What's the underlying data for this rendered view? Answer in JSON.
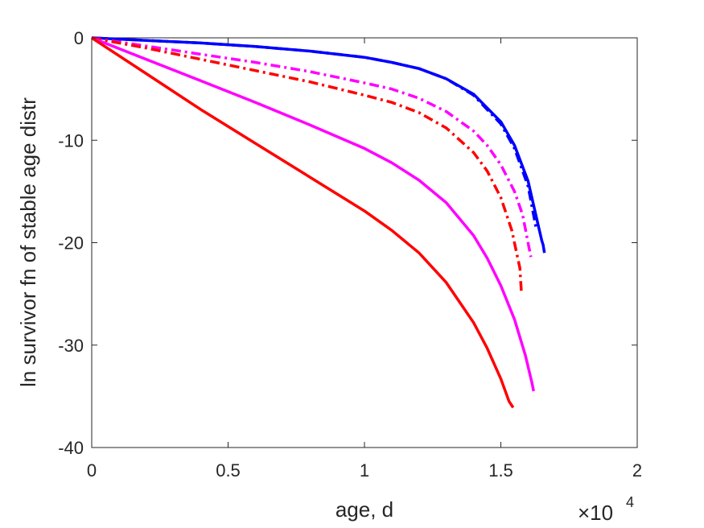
{
  "chart_data": {
    "type": "line",
    "title": "",
    "xlabel": "age, d",
    "ylabel": "ln survivor fn of stable age distr",
    "xlim": [
      0,
      20000
    ],
    "ylim": [
      -40,
      0
    ],
    "x_exponent_label": {
      "base": "×10",
      "power": "4"
    },
    "xticks": [
      {
        "value": 0,
        "label": "0"
      },
      {
        "value": 5000,
        "label": "0.5"
      },
      {
        "value": 10000,
        "label": "1"
      },
      {
        "value": 15000,
        "label": "1.5"
      },
      {
        "value": 20000,
        "label": "2"
      }
    ],
    "yticks": [
      {
        "value": 0,
        "label": "0"
      },
      {
        "value": -10,
        "label": "-10"
      },
      {
        "value": -20,
        "label": "-20"
      },
      {
        "value": -30,
        "label": "-30"
      },
      {
        "value": -40,
        "label": "-40"
      }
    ],
    "grid": false,
    "series": [
      {
        "color": "#0000ff",
        "style": "solid",
        "width": 3.5,
        "points": [
          [
            0,
            0
          ],
          [
            2000,
            -0.25
          ],
          [
            4000,
            -0.5
          ],
          [
            6000,
            -0.85
          ],
          [
            8000,
            -1.3
          ],
          [
            10000,
            -1.9
          ],
          [
            11000,
            -2.4
          ],
          [
            12000,
            -3.0
          ],
          [
            13000,
            -4.0
          ],
          [
            14000,
            -5.5
          ],
          [
            15000,
            -8.2
          ],
          [
            15500,
            -10.5
          ],
          [
            16000,
            -14.0
          ],
          [
            16300,
            -17.5
          ],
          [
            16500,
            -19.8
          ],
          [
            16550,
            -20.2
          ],
          [
            16600,
            -21.0
          ]
        ]
      },
      {
        "color": "#0000ff",
        "style": "dashdot",
        "width": 3.5,
        "points": [
          [
            0,
            0
          ],
          [
            2000,
            -0.25
          ],
          [
            4000,
            -0.5
          ],
          [
            6000,
            -0.85
          ],
          [
            8000,
            -1.3
          ],
          [
            10000,
            -1.9
          ],
          [
            11000,
            -2.4
          ],
          [
            12000,
            -3.0
          ],
          [
            13000,
            -4.0
          ],
          [
            14000,
            -5.6
          ],
          [
            15000,
            -8.4
          ],
          [
            15500,
            -10.8
          ],
          [
            16000,
            -14.5
          ],
          [
            16300,
            -18.7
          ]
        ]
      },
      {
        "color": "#ff00ff",
        "style": "dashdot",
        "width": 3.5,
        "points": [
          [
            0,
            0
          ],
          [
            2000,
            -0.8
          ],
          [
            4000,
            -1.6
          ],
          [
            6000,
            -2.4
          ],
          [
            8000,
            -3.3
          ],
          [
            10000,
            -4.4
          ],
          [
            11000,
            -5.0
          ],
          [
            12000,
            -5.9
          ],
          [
            13000,
            -7.2
          ],
          [
            14000,
            -9.1
          ],
          [
            14500,
            -10.5
          ],
          [
            15000,
            -12.4
          ],
          [
            15500,
            -15.0
          ],
          [
            15800,
            -17.3
          ],
          [
            16100,
            -21.4
          ]
        ]
      },
      {
        "color": "#ff0000",
        "style": "dashdot",
        "width": 3.5,
        "points": [
          [
            0,
            0
          ],
          [
            2000,
            -1.0
          ],
          [
            4000,
            -2.1
          ],
          [
            6000,
            -3.2
          ],
          [
            8000,
            -4.3
          ],
          [
            10000,
            -5.6
          ],
          [
            11000,
            -6.3
          ],
          [
            12000,
            -7.3
          ],
          [
            13000,
            -8.8
          ],
          [
            14000,
            -11.2
          ],
          [
            14500,
            -13.0
          ],
          [
            15000,
            -15.6
          ],
          [
            15400,
            -18.8
          ],
          [
            15700,
            -22.5
          ],
          [
            15750,
            -24.7
          ]
        ]
      },
      {
        "color": "#ff00ff",
        "style": "solid",
        "width": 3.5,
        "points": [
          [
            0,
            0
          ],
          [
            2000,
            -2.1
          ],
          [
            4000,
            -4.2
          ],
          [
            6000,
            -6.3
          ],
          [
            8000,
            -8.5
          ],
          [
            10000,
            -10.8
          ],
          [
            11000,
            -12.2
          ],
          [
            12000,
            -13.9
          ],
          [
            13000,
            -16.1
          ],
          [
            14000,
            -19.3
          ],
          [
            14500,
            -21.5
          ],
          [
            15000,
            -24.2
          ],
          [
            15500,
            -27.5
          ],
          [
            15900,
            -31.0
          ],
          [
            16150,
            -33.8
          ],
          [
            16200,
            -34.5
          ]
        ]
      },
      {
        "color": "#ff0000",
        "style": "solid",
        "width": 3.5,
        "points": [
          [
            0,
            0
          ],
          [
            2000,
            -3.5
          ],
          [
            4000,
            -7.0
          ],
          [
            6000,
            -10.3
          ],
          [
            8000,
            -13.6
          ],
          [
            10000,
            -16.9
          ],
          [
            11000,
            -18.8
          ],
          [
            12000,
            -21.0
          ],
          [
            13000,
            -23.9
          ],
          [
            14000,
            -27.8
          ],
          [
            14500,
            -30.3
          ],
          [
            15000,
            -33.3
          ],
          [
            15300,
            -35.5
          ],
          [
            15450,
            -36.1
          ]
        ]
      }
    ]
  }
}
